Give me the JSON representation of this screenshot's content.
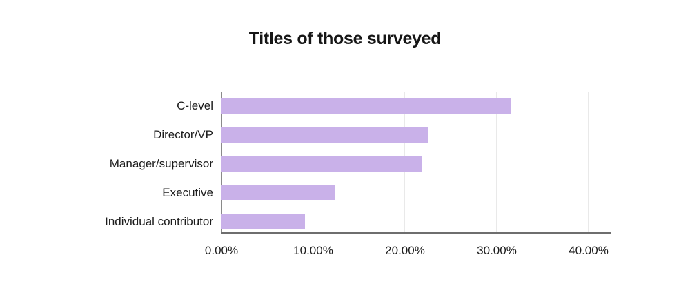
{
  "title": "Titles of those surveyed",
  "chart_data": {
    "type": "bar",
    "orientation": "horizontal",
    "title": "Titles of those surveyed",
    "categories": [
      "C-level",
      "Director/VP",
      "Manager/supervisor",
      "Executive",
      "Individual contributor"
    ],
    "values": [
      31.5,
      22.5,
      21.8,
      12.3,
      9.1
    ],
    "value_unit": "%",
    "xlabel": "",
    "ylabel": "",
    "xlim": [
      0,
      40
    ],
    "x_tick_values": [
      0,
      10,
      20,
      30,
      40
    ],
    "x_tick_labels": [
      "0.00%",
      "10.00%",
      "20.00%",
      "30.00%",
      "40.00%"
    ],
    "grid": "vertical",
    "legend": "none",
    "colors": {
      "bar": "#c9b1e9",
      "gridline": "#e9e9e9",
      "y_axis": "#8a8a8a",
      "x_axis": "#6e6e6e",
      "text": "#1c1c1c",
      "title_text": "#161616",
      "background": "#ffffff"
    }
  }
}
